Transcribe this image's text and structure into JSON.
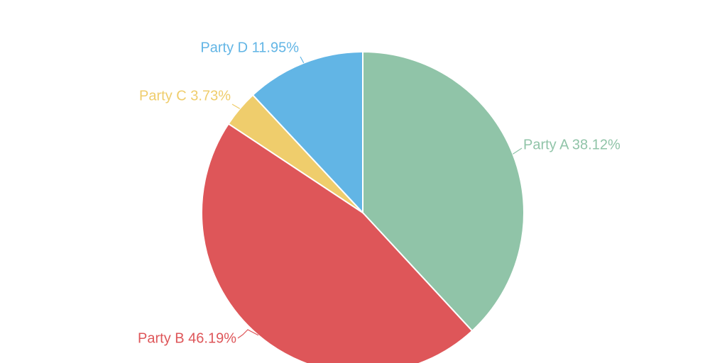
{
  "chart_data": {
    "type": "pie",
    "start_angle_deg": 0,
    "direction": "clockwise",
    "slices": [
      {
        "name": "Party A",
        "value": 38.12,
        "label": "Party A 38.12%",
        "color": "#90c4a8"
      },
      {
        "name": "Party B",
        "value": 46.19,
        "label": "Party B 46.19%",
        "color": "#de5659"
      },
      {
        "name": "Party C",
        "value": 3.73,
        "label": "Party C 3.73%",
        "color": "#efcd6c"
      },
      {
        "name": "Party D",
        "value": 11.95,
        "label": "Party D 11.95%",
        "color": "#62b5e5"
      }
    ]
  }
}
